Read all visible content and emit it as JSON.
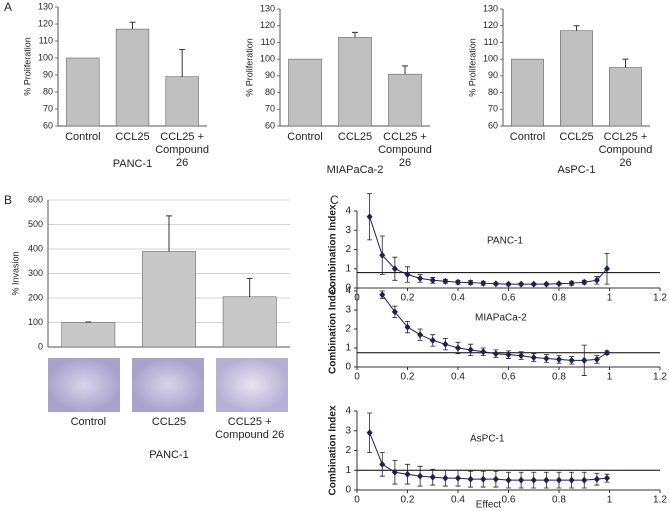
{
  "panel_labels": [
    "A",
    "B",
    "C"
  ],
  "chart_data": [
    {
      "type": "bar",
      "x_label": "PANC-1",
      "y_label": "% Proliferation",
      "categories": [
        "Control",
        "CCL25",
        "CCL25 + Compound 26"
      ],
      "values": [
        100,
        117,
        89
      ],
      "errors": [
        null,
        4,
        16
      ],
      "color": "#c0c0c0",
      "ylim": [
        60,
        130
      ],
      "yticks": [
        60,
        70,
        80,
        90,
        100,
        110,
        120,
        130
      ],
      "grid": false
    },
    {
      "type": "bar",
      "x_label": "MIAPaCa-2",
      "y_label": "% Proliferation",
      "categories": [
        "Control",
        "CCL25",
        "CCL25 + Compound 26"
      ],
      "values": [
        100,
        113,
        91
      ],
      "errors": [
        null,
        3,
        5
      ],
      "color": "#c0c0c0",
      "ylim": [
        60,
        130
      ],
      "yticks": [
        60,
        70,
        80,
        90,
        100,
        110,
        120,
        130
      ],
      "grid": false
    },
    {
      "type": "bar",
      "x_label": "AsPC-1",
      "y_label": "% Proliferation",
      "categories": [
        "Control",
        "CCL25",
        "CCL25 + Compound 26"
      ],
      "values": [
        100,
        117,
        95
      ],
      "errors": [
        null,
        3,
        5
      ],
      "color": "#c0c0c0",
      "ylim": [
        60,
        130
      ],
      "yticks": [
        60,
        70,
        80,
        90,
        100,
        110,
        120,
        130
      ],
      "grid": false
    },
    {
      "type": "bar",
      "x_label": "PANC-1",
      "y_label": "% Invasion",
      "categories": [
        "Control",
        "CCL25",
        "CCL25 + Compound 26"
      ],
      "values": [
        100,
        390,
        205
      ],
      "errors": [
        2,
        145,
        75
      ],
      "color": "#c8c8c8",
      "ylim": [
        0,
        600
      ],
      "yticks": [
        0,
        100,
        200,
        300,
        400,
        500,
        600
      ],
      "grid": true
    },
    {
      "type": "line",
      "title": "PANC-1",
      "y_label": "Combination Index",
      "color": "#1f1f5c",
      "reference_line": 0.8,
      "x": [
        0.05,
        0.1,
        0.15,
        0.2,
        0.25,
        0.3,
        0.35,
        0.4,
        0.45,
        0.5,
        0.55,
        0.6,
        0.65,
        0.7,
        0.75,
        0.8,
        0.85,
        0.9,
        0.95,
        0.99
      ],
      "values": [
        3.7,
        1.7,
        1.0,
        0.7,
        0.5,
        0.4,
        0.35,
        0.3,
        0.28,
        0.25,
        0.22,
        0.2,
        0.2,
        0.2,
        0.2,
        0.22,
        0.25,
        0.3,
        0.4,
        1.0
      ],
      "errors": [
        1.2,
        1.0,
        0.6,
        0.4,
        0.2,
        0.15,
        0.1,
        0.1,
        0.1,
        0.1,
        0.05,
        0.05,
        0.05,
        0.05,
        0.05,
        0.05,
        0.1,
        0.1,
        0.2,
        0.8
      ],
      "xlim": [
        0,
        1.2
      ],
      "xticks": [
        0,
        0.2,
        0.4,
        0.6,
        0.8,
        1,
        1.2
      ],
      "ylim": [
        0,
        4
      ],
      "yticks": [
        0,
        1,
        2,
        3,
        4
      ]
    },
    {
      "type": "line",
      "title": "MIAPaCa-2",
      "y_label": "Combination Index",
      "color": "#1f1f5c",
      "reference_line": 0.75,
      "x": [
        0.1,
        0.15,
        0.2,
        0.25,
        0.3,
        0.35,
        0.4,
        0.45,
        0.5,
        0.55,
        0.6,
        0.65,
        0.7,
        0.75,
        0.8,
        0.85,
        0.9,
        0.95,
        0.99
      ],
      "values": [
        3.8,
        2.9,
        2.1,
        1.7,
        1.4,
        1.2,
        1.0,
        0.9,
        0.8,
        0.7,
        0.65,
        0.6,
        0.5,
        0.45,
        0.4,
        0.35,
        0.35,
        0.4,
        0.75
      ],
      "errors": [
        0.2,
        0.3,
        0.3,
        0.3,
        0.3,
        0.3,
        0.3,
        0.3,
        0.2,
        0.2,
        0.2,
        0.2,
        0.2,
        0.2,
        0.2,
        0.2,
        0.8,
        0.2,
        0.1
      ],
      "xlim": [
        0,
        1.2
      ],
      "xticks": [
        0,
        0.2,
        0.4,
        0.6,
        0.8,
        1,
        1.2
      ],
      "ylim": [
        0,
        4
      ],
      "yticks": [
        0,
        1,
        2,
        3,
        4
      ]
    },
    {
      "type": "line",
      "title": "AsPC-1",
      "x_label": "Effect",
      "y_label": "Combination Index",
      "color": "#1f1f5c",
      "reference_line": 1,
      "x": [
        0.05,
        0.1,
        0.15,
        0.2,
        0.25,
        0.3,
        0.35,
        0.4,
        0.45,
        0.5,
        0.55,
        0.6,
        0.65,
        0.7,
        0.75,
        0.8,
        0.85,
        0.9,
        0.95,
        0.99
      ],
      "values": [
        2.9,
        1.3,
        0.9,
        0.8,
        0.7,
        0.65,
        0.6,
        0.6,
        0.55,
        0.55,
        0.55,
        0.5,
        0.5,
        0.5,
        0.5,
        0.5,
        0.5,
        0.5,
        0.55,
        0.6
      ],
      "errors": [
        1.0,
        0.6,
        0.6,
        0.5,
        0.5,
        0.4,
        0.4,
        0.4,
        0.4,
        0.4,
        0.4,
        0.4,
        0.4,
        0.4,
        0.4,
        0.4,
        0.4,
        0.4,
        0.3,
        0.2
      ],
      "xlim": [
        0,
        1.2
      ],
      "xticks": [
        0,
        0.2,
        0.4,
        0.6,
        0.8,
        1,
        1.2
      ],
      "ylim": [
        0,
        4
      ],
      "yticks": [
        0,
        1,
        2,
        3,
        4
      ]
    }
  ]
}
